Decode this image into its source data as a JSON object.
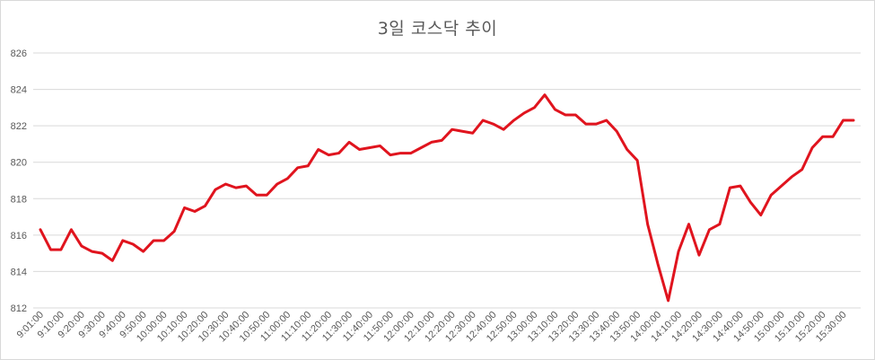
{
  "chart_data": {
    "type": "line",
    "title": "3일 코스닥 추이",
    "xlabel": "",
    "ylabel": "",
    "ylim": [
      812,
      826
    ],
    "y_ticks": [
      812,
      814,
      816,
      818,
      820,
      822,
      824,
      826
    ],
    "x_tick_labels": [
      "9:01:00",
      "9:10:00",
      "9:20:00",
      "9:30:00",
      "9:40:00",
      "9:50:00",
      "10:00:00",
      "10:10:00",
      "10:20:00",
      "10:30:00",
      "10:40:00",
      "10:50:00",
      "11:00:00",
      "11:10:00",
      "11:20:00",
      "11:30:00",
      "11:40:00",
      "11:50:00",
      "12:00:00",
      "12:10:00",
      "12:20:00",
      "12:30:00",
      "12:40:00",
      "12:50:00",
      "13:00:00",
      "13:10:00",
      "13:20:00",
      "13:30:00",
      "13:40:00",
      "13:50:00",
      "14:00:00",
      "14:10:00",
      "14:20:00",
      "14:30:00",
      "14:40:00",
      "14:50:00",
      "15:00:00",
      "15:10:00",
      "15:20:00",
      "15:30:00"
    ],
    "grid": true,
    "legend": "none",
    "series": [
      {
        "color": "#e0141e",
        "values": [
          816.3,
          815.2,
          815.2,
          816.3,
          815.4,
          815.1,
          815.0,
          814.6,
          815.7,
          815.5,
          815.1,
          815.7,
          815.7,
          816.2,
          817.5,
          817.3,
          817.6,
          818.5,
          818.8,
          818.6,
          818.7,
          818.2,
          818.2,
          818.8,
          819.1,
          819.7,
          819.8,
          820.7,
          820.4,
          820.5,
          821.1,
          820.7,
          820.8,
          820.9,
          820.4,
          820.5,
          820.5,
          820.8,
          821.1,
          821.2,
          821.8,
          821.7,
          821.6,
          822.3,
          822.1,
          821.8,
          822.3,
          822.7,
          823.0,
          823.7,
          822.9,
          822.6,
          822.6,
          822.1,
          822.1,
          822.3,
          821.7,
          820.7,
          820.1,
          816.6,
          814.4,
          812.4,
          815.1,
          816.6,
          814.9,
          816.3,
          816.6,
          818.6,
          818.7,
          817.8,
          817.1,
          818.2,
          818.7,
          819.2,
          819.6,
          820.8,
          821.4,
          821.4,
          822.3,
          822.3
        ]
      }
    ]
  }
}
